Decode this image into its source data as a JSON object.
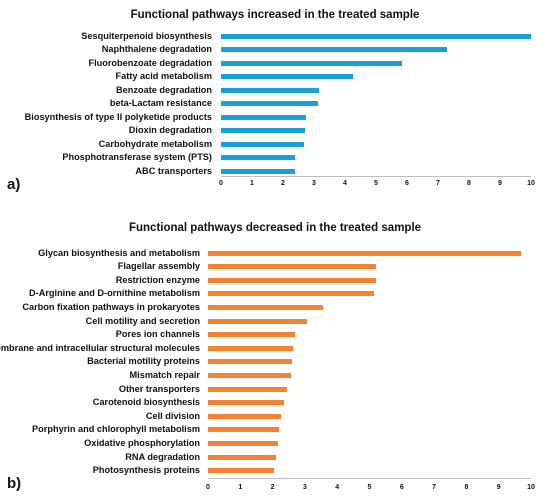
{
  "chart_data": [
    {
      "panel_letter": "a)",
      "type": "bar",
      "orientation": "horizontal",
      "title": "Functional pathways increased in the treated sample",
      "color": "#1b9fd9",
      "categories": [
        "Sesquiterpenoid biosynthesis",
        "Naphthalene degradation",
        "Fluorobenzoate degradation",
        "Fatty acid metabolism",
        "Benzoate degradation",
        "beta-Lactam resistance",
        "Biosynthesis of type II polyketide products",
        "Dioxin degradation",
        "Carbohydrate metabolism",
        "Phosphotransferase system (PTS)",
        "ABC transporters"
      ],
      "values": [
        10.0,
        7.3,
        5.85,
        4.25,
        3.15,
        3.12,
        2.75,
        2.7,
        2.68,
        2.4,
        2.38
      ],
      "xlim": [
        0,
        10
      ],
      "xticks": [
        "0",
        "1",
        "2",
        "3",
        "4",
        "5",
        "6",
        "7",
        "8",
        "9",
        "10"
      ],
      "grid": false
    },
    {
      "panel_letter": "b)",
      "type": "bar",
      "orientation": "horizontal",
      "title": "Functional pathways decreased in the treated sample",
      "color": "#f58231",
      "categories": [
        "Glycan biosynthesis and metabolism",
        "Flagellar assembly",
        "Restriction enzyme",
        "D-Arginine and D-ornithine metabolism",
        "Carbon fixation pathways in prokaryotes",
        "Cell motility and secretion",
        "Pores ion channels",
        "Membrane and intracellular structural molecules",
        "Bacterial motility proteins",
        "Mismatch repair",
        "Other transporters",
        "Carotenoid biosynthesis",
        "Cell division",
        "Porphyrin and chlorophyll metabolism",
        "Oxidative phosphorylation",
        "RNA degradation",
        "Photosynthesis proteins"
      ],
      "values": [
        9.7,
        5.2,
        5.2,
        5.15,
        3.55,
        3.05,
        2.7,
        2.62,
        2.6,
        2.58,
        2.45,
        2.35,
        2.25,
        2.2,
        2.18,
        2.12,
        2.05
      ],
      "xlim": [
        0,
        10
      ],
      "xticks": [
        "0",
        "1",
        "2",
        "3",
        "4",
        "5",
        "6",
        "7",
        "8",
        "9",
        "10"
      ],
      "grid": false
    }
  ]
}
